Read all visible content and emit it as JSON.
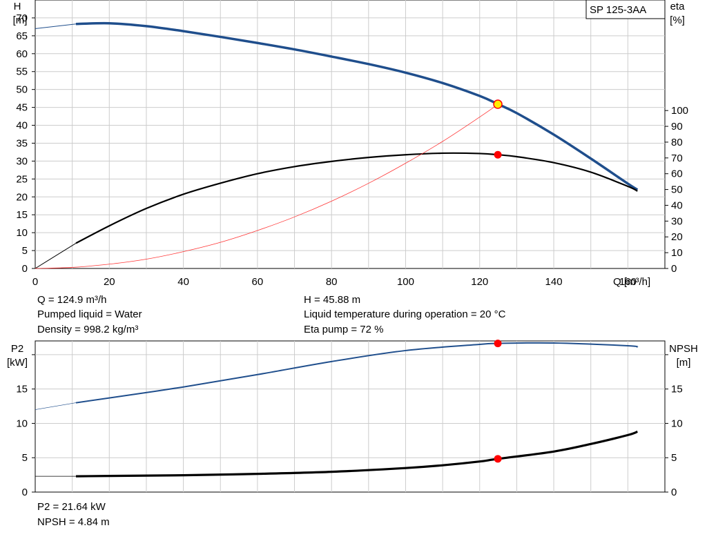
{
  "pump_label": "SP 125-3AA",
  "colors": {
    "head": "#1f4e8c",
    "eta": "#000000",
    "system": "#ff3333",
    "p2": "#1f4e8c",
    "npsh": "#000000",
    "op_head": "#ffee00",
    "op_marker": "#ff0000",
    "grid": "#cccccc"
  },
  "chart_data": [
    {
      "type": "line",
      "title": "",
      "x_axis": {
        "label": "Q [m³/h]",
        "range": [
          0,
          170
        ],
        "ticks": [
          0,
          20,
          40,
          60,
          80,
          100,
          120,
          140,
          160
        ]
      },
      "y_left": {
        "label_top": "H",
        "label_unit": "[m]",
        "range": [
          0,
          75
        ],
        "ticks": [
          0,
          5,
          10,
          15,
          20,
          25,
          30,
          35,
          40,
          45,
          50,
          55,
          60,
          65,
          70
        ]
      },
      "y_right": {
        "label_top": "eta",
        "label_unit": "[%]",
        "range": [
          0,
          170
        ],
        "ticks": [
          0,
          10,
          20,
          30,
          40,
          50,
          60,
          70,
          80,
          90,
          100
        ]
      },
      "grid": true,
      "series": [
        {
          "key": "head",
          "axis": "left",
          "x": [
            0,
            11,
            20,
            30,
            40,
            50,
            60,
            70,
            80,
            90,
            100,
            110,
            120,
            125,
            130,
            140,
            150,
            160,
            162.6
          ],
          "y": [
            67,
            68.3,
            68.5,
            67.7,
            66.3,
            64.7,
            63,
            61.2,
            59.2,
            57.1,
            54.7,
            51.8,
            48.2,
            45.88,
            43.4,
            37.4,
            30.7,
            23.7,
            22
          ]
        },
        {
          "key": "eta",
          "axis": "right",
          "x": [
            0,
            11,
            20,
            30,
            40,
            50,
            60,
            70,
            80,
            90,
            100,
            110,
            120,
            125,
            130,
            140,
            150,
            160,
            162.6
          ],
          "y": [
            0,
            16,
            27,
            38,
            47,
            54,
            60,
            64.5,
            67.8,
            70.3,
            72,
            73,
            72.8,
            72,
            70.8,
            67,
            61,
            52,
            49
          ]
        },
        {
          "key": "system",
          "axis": "left",
          "x": [
            0,
            10,
            20,
            30,
            40,
            50,
            60,
            70,
            80,
            90,
            100,
            110,
            120,
            125
          ],
          "y": [
            0,
            0.3,
            1.2,
            2.6,
            4.7,
            7.3,
            10.6,
            14.4,
            18.8,
            23.8,
            29.4,
            35.5,
            42.3,
            45.88
          ]
        }
      ],
      "operating_point": {
        "q": 124.9,
        "h": 45.88,
        "eta": 72
      }
    },
    {
      "type": "line",
      "title": "",
      "x_axis": {
        "range": [
          0,
          170
        ]
      },
      "y_left": {
        "label_top": "P2",
        "label_unit": "[kW]",
        "range": [
          0,
          22
        ],
        "ticks": [
          0,
          5,
          10,
          15
        ]
      },
      "y_right": {
        "label_top": "NPSH",
        "label_unit": "[m]",
        "range": [
          0,
          22
        ],
        "ticks": [
          0,
          5,
          10,
          15
        ]
      },
      "grid": true,
      "series": [
        {
          "key": "p2",
          "axis": "left",
          "x": [
            0,
            11,
            20,
            40,
            60,
            80,
            100,
            120,
            125,
            140,
            160,
            162.6
          ],
          "y": [
            12,
            13,
            13.7,
            15.3,
            17.1,
            19,
            20.6,
            21.5,
            21.64,
            21.7,
            21.3,
            21.1
          ]
        },
        {
          "key": "npsh",
          "axis": "right",
          "x": [
            0,
            11,
            20,
            40,
            60,
            80,
            100,
            110,
            120,
            125,
            140,
            150,
            160,
            162.6
          ],
          "y": [
            2.3,
            2.3,
            2.35,
            2.45,
            2.65,
            2.95,
            3.5,
            3.9,
            4.45,
            4.84,
            5.9,
            7,
            8.3,
            8.8
          ]
        }
      ],
      "operating_point": {
        "q": 124.9,
        "p2": 21.64,
        "npsh": 4.84
      }
    }
  ],
  "info_upper": {
    "q": "Q = 124.9 m³/h",
    "liquid": "Pumped liquid = Water",
    "density": "Density = 998.2 kg/m³",
    "h": "H = 45.88 m",
    "temp": "Liquid temperature during operation = 20 °C",
    "eta": "Eta pump = 72 %"
  },
  "info_lower": {
    "p2": "P2 = 21.64 kW",
    "npsh": "NPSH = 4.84 m"
  }
}
